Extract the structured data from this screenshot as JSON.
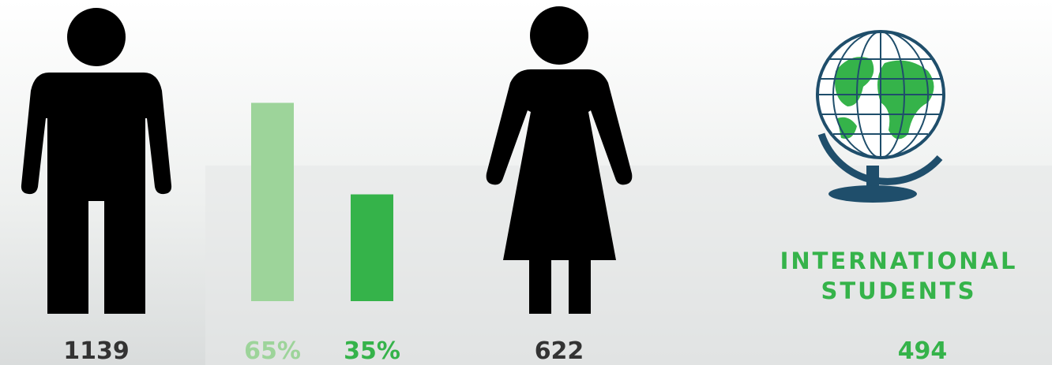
{
  "male": {
    "count": 1139
  },
  "shares": {
    "values": [
      65,
      35
    ],
    "value_labels": [
      "65%",
      "35%"
    ],
    "colors": [
      "#9dd49a",
      "#35b34a"
    ]
  },
  "female": {
    "count": 622
  },
  "international": {
    "label": "INTERNATIONAL STUDENTS",
    "count": 494
  }
}
